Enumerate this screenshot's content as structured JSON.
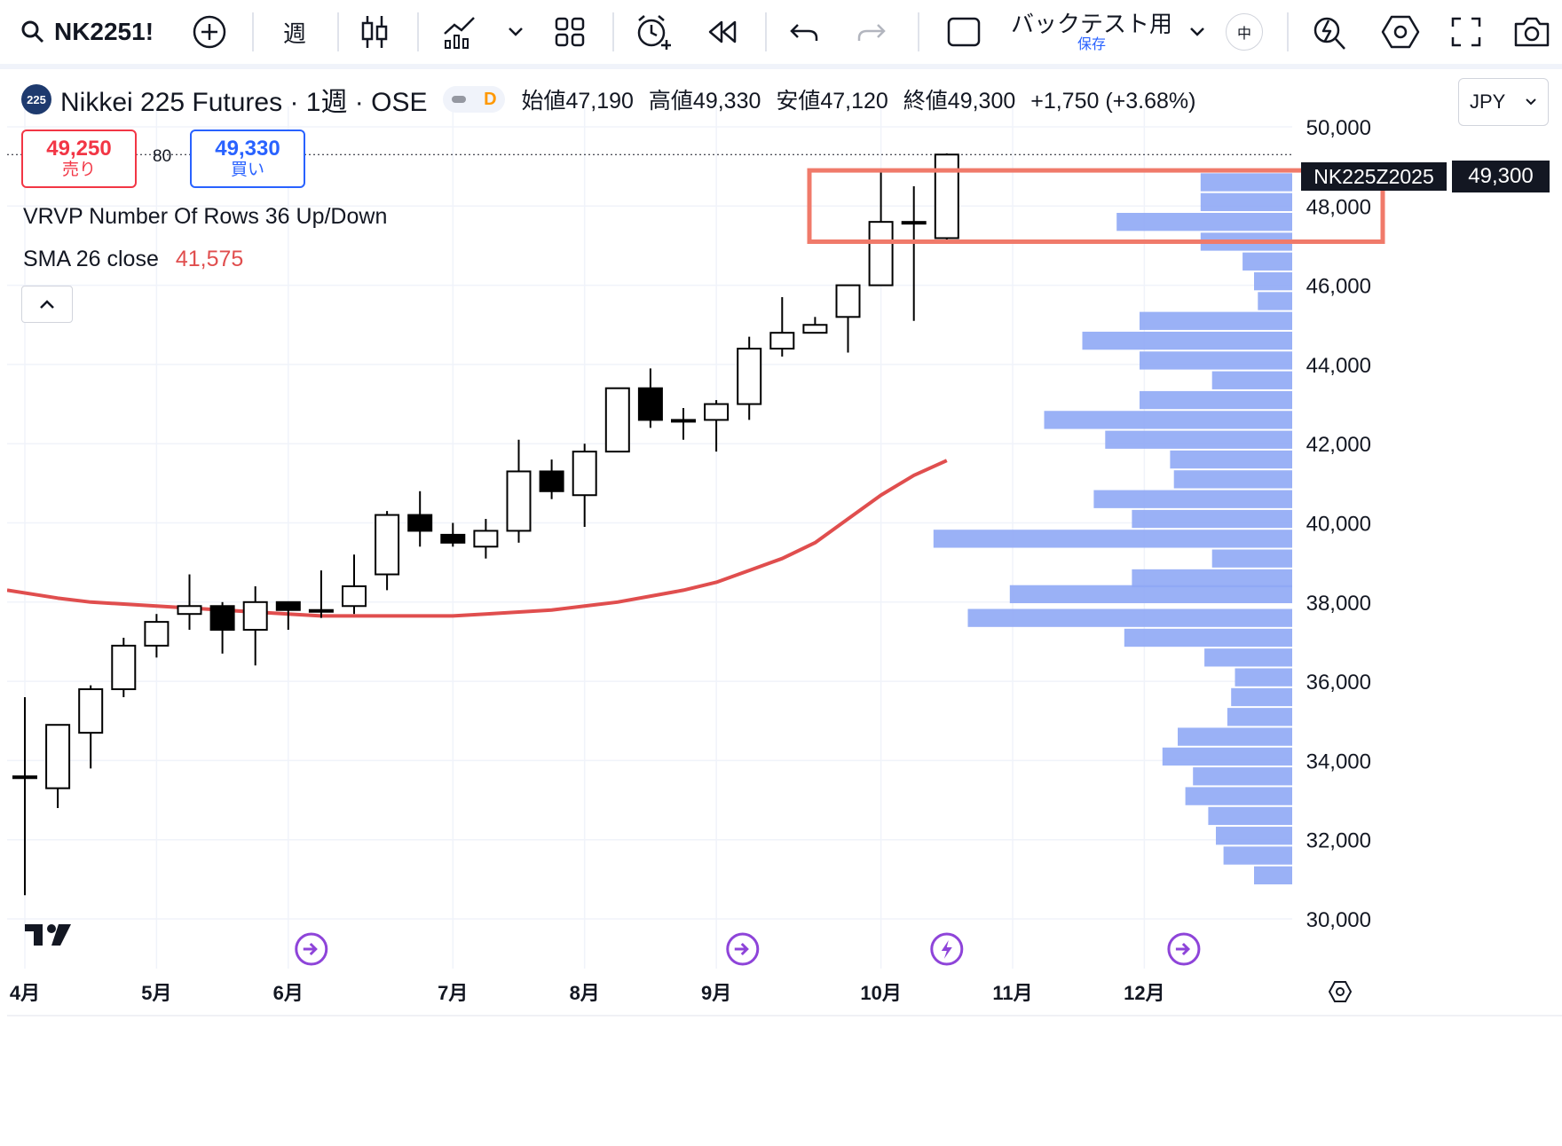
{
  "toolbar": {
    "symbol": "NK2251!",
    "interval": "週",
    "backtest_label": "バックテスト用",
    "backtest_sub": "保存",
    "lang_badge": "中"
  },
  "legend": {
    "badge": "225",
    "title": "Nikkei 225 Futures · 1週 · OSE",
    "status_letter": "D",
    "open_label": "始値",
    "open": "47,190",
    "high_label": "高値",
    "high": "49,330",
    "low_label": "安値",
    "low": "47,120",
    "close_label": "終値",
    "close": "49,300",
    "change": "+1,750 (+3.68%)"
  },
  "trade": {
    "sell_price": "49,250",
    "sell_label": "売り",
    "buy_price": "49,330",
    "buy_label": "買い",
    "spread": "80"
  },
  "indicators": {
    "vrvp_label": "VRVP Number Of Rows 36 Up/Down",
    "sma_label": "SMA 26 close",
    "sma_value": "41,575"
  },
  "currency": "JPY",
  "price_tag": {
    "name": "NK225Z2025",
    "value": "49,300"
  },
  "colors": {
    "sma": "#e04e4e",
    "volume": "#8fa8f5",
    "highlight": "#f07a6a",
    "up": "#ffffff",
    "down": "#000000",
    "event_icon": "#8e44d9"
  },
  "chart_data": {
    "type": "candlestick",
    "ylim": [
      30000,
      50000
    ],
    "y_ticks": [
      30000,
      32000,
      34000,
      36000,
      38000,
      40000,
      42000,
      44000,
      46000,
      48000,
      50000
    ],
    "y_tick_labels": [
      "30,000",
      "32,000",
      "34,000",
      "36,000",
      "38,000",
      "40,000",
      "42,000",
      "44,000",
      "46,000",
      "48,000",
      "50,000"
    ],
    "x_labels": [
      "4月",
      "5月",
      "6月",
      "7月",
      "8月",
      "9月",
      "10月",
      "11月",
      "12月"
    ],
    "candles": [
      {
        "o": 33600,
        "h": 35600,
        "l": 30600,
        "c": 33600
      },
      {
        "o": 33300,
        "h": 34800,
        "l": 32800,
        "c": 34900
      },
      {
        "o": 34700,
        "h": 35900,
        "l": 33800,
        "c": 35800
      },
      {
        "o": 35800,
        "h": 37100,
        "l": 35600,
        "c": 36900
      },
      {
        "o": 36900,
        "h": 37700,
        "l": 36600,
        "c": 37500
      },
      {
        "o": 37700,
        "h": 38700,
        "l": 37300,
        "c": 37900
      },
      {
        "o": 37900,
        "h": 38000,
        "l": 36700,
        "c": 37300
      },
      {
        "o": 37300,
        "h": 38400,
        "l": 36400,
        "c": 38000
      },
      {
        "o": 38000,
        "h": 38000,
        "l": 37300,
        "c": 37800
      },
      {
        "o": 37800,
        "h": 38800,
        "l": 37600,
        "c": 37800
      },
      {
        "o": 37900,
        "h": 39200,
        "l": 37700,
        "c": 38400
      },
      {
        "o": 38700,
        "h": 40300,
        "l": 38300,
        "c": 40200
      },
      {
        "o": 40200,
        "h": 40800,
        "l": 39400,
        "c": 39800
      },
      {
        "o": 39700,
        "h": 40000,
        "l": 39400,
        "c": 39500
      },
      {
        "o": 39400,
        "h": 40100,
        "l": 39100,
        "c": 39800
      },
      {
        "o": 39800,
        "h": 42100,
        "l": 39500,
        "c": 41300
      },
      {
        "o": 41300,
        "h": 41600,
        "l": 40600,
        "c": 40800
      },
      {
        "o": 40700,
        "h": 42000,
        "l": 39900,
        "c": 41800
      },
      {
        "o": 41800,
        "h": 43400,
        "l": 41800,
        "c": 43400
      },
      {
        "o": 43400,
        "h": 43900,
        "l": 42400,
        "c": 42600
      },
      {
        "o": 42600,
        "h": 42900,
        "l": 42100,
        "c": 42600
      },
      {
        "o": 42600,
        "h": 43100,
        "l": 41800,
        "c": 43000
      },
      {
        "o": 43000,
        "h": 44700,
        "l": 42600,
        "c": 44400
      },
      {
        "o": 44400,
        "h": 45700,
        "l": 44200,
        "c": 44800
      },
      {
        "o": 44800,
        "h": 45200,
        "l": 44800,
        "c": 45000
      },
      {
        "o": 45200,
        "h": 46000,
        "l": 44300,
        "c": 46000
      },
      {
        "o": 46000,
        "h": 48900,
        "l": 46000,
        "c": 47600
      },
      {
        "o": 47600,
        "h": 48500,
        "l": 45100,
        "c": 47600
      },
      {
        "o": 47190,
        "h": 49330,
        "l": 47120,
        "c": 49300
      }
    ],
    "sma": [
      38300,
      38100,
      38000,
      37950,
      37900,
      37850,
      37800,
      37750,
      37700,
      37650,
      37650,
      37650,
      37650,
      37650,
      37700,
      37750,
      37800,
      37900,
      38000,
      38150,
      38300,
      38500,
      38800,
      39100,
      39500,
      40100,
      40700,
      41200,
      41575
    ],
    "volume_profile_rows": [
      {
        "price": 31100,
        "vol": 0.1
      },
      {
        "price": 31600,
        "vol": 0.18
      },
      {
        "price": 32100,
        "vol": 0.2
      },
      {
        "price": 32600,
        "vol": 0.22
      },
      {
        "price": 33100,
        "vol": 0.28
      },
      {
        "price": 33600,
        "vol": 0.26
      },
      {
        "price": 34100,
        "vol": 0.34
      },
      {
        "price": 34600,
        "vol": 0.3
      },
      {
        "price": 35100,
        "vol": 0.17
      },
      {
        "price": 35600,
        "vol": 0.16
      },
      {
        "price": 36100,
        "vol": 0.15
      },
      {
        "price": 36600,
        "vol": 0.23
      },
      {
        "price": 37100,
        "vol": 0.44
      },
      {
        "price": 37600,
        "vol": 0.85
      },
      {
        "price": 38200,
        "vol": 0.74
      },
      {
        "price": 38600,
        "vol": 0.42
      },
      {
        "price": 39100,
        "vol": 0.21
      },
      {
        "price": 39600,
        "vol": 0.94
      },
      {
        "price": 40100,
        "vol": 0.42
      },
      {
        "price": 40600,
        "vol": 0.52
      },
      {
        "price": 41100,
        "vol": 0.31
      },
      {
        "price": 41600,
        "vol": 0.32
      },
      {
        "price": 42100,
        "vol": 0.49
      },
      {
        "price": 42600,
        "vol": 0.65
      },
      {
        "price": 43100,
        "vol": 0.4
      },
      {
        "price": 43600,
        "vol": 0.21
      },
      {
        "price": 44100,
        "vol": 0.4
      },
      {
        "price": 44600,
        "vol": 0.55
      },
      {
        "price": 45100,
        "vol": 0.4
      },
      {
        "price": 45600,
        "vol": 0.09
      },
      {
        "price": 46100,
        "vol": 0.1
      },
      {
        "price": 46600,
        "vol": 0.13
      },
      {
        "price": 47100,
        "vol": 0.24
      },
      {
        "price": 47600,
        "vol": 0.46
      },
      {
        "price": 48100,
        "vol": 0.24
      },
      {
        "price": 48600,
        "vol": 0.24
      }
    ],
    "highlight_range": [
      47100,
      48900
    ],
    "events": [
      {
        "x_index": 8.7,
        "type": "dividend"
      },
      {
        "x_index": 21.8,
        "type": "dividend"
      },
      {
        "x_index": 28.0,
        "type": "earnings"
      },
      {
        "x_index": 35.2,
        "type": "dividend"
      }
    ]
  }
}
